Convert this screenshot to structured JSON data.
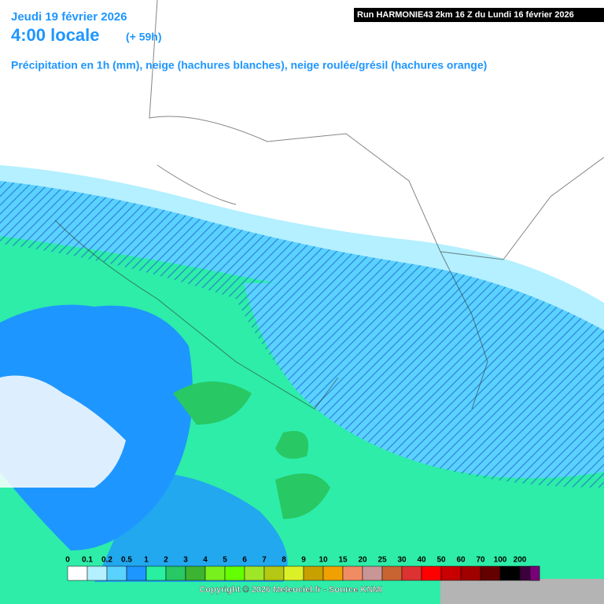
{
  "header": {
    "date": "Jeudi 19 février 2026",
    "time": "4:00 locale",
    "lead": "(+ 59h)",
    "description": "Précipitation en 1h (mm), neige (hachures blanches), neige roulée/grésil (hachures orange)",
    "run": "Run HARMONIE43 2km 16 Z du Lundi 16 février 2026"
  },
  "legend": {
    "entries": [
      {
        "label": "0",
        "color": "#ffffff"
      },
      {
        "label": "0.1",
        "color": "#b4f0ff"
      },
      {
        "label": "0.2",
        "color": "#5ad2ff"
      },
      {
        "label": "0.5",
        "color": "#1e96ff"
      },
      {
        "label": "1",
        "color": "#28f0a0"
      },
      {
        "label": "2",
        "color": "#28c864"
      },
      {
        "label": "3",
        "color": "#3cb432"
      },
      {
        "label": "4",
        "color": "#78f01e"
      },
      {
        "label": "5",
        "color": "#64ff00"
      },
      {
        "label": "6",
        "color": "#a0e628"
      },
      {
        "label": "7",
        "color": "#b4c814"
      },
      {
        "label": "8",
        "color": "#dcf028"
      },
      {
        "label": "9",
        "color": "#c8a000"
      },
      {
        "label": "10",
        "color": "#f0a000"
      },
      {
        "label": "15",
        "color": "#f08c64"
      },
      {
        "label": "20",
        "color": "#c89696"
      },
      {
        "label": "25",
        "color": "#c86432"
      },
      {
        "label": "30",
        "color": "#dc3232"
      },
      {
        "label": "40",
        "color": "#ff0000"
      },
      {
        "label": "50",
        "color": "#c80000"
      },
      {
        "label": "60",
        "color": "#a00000"
      },
      {
        "label": "70",
        "color": "#640000"
      },
      {
        "label": "100",
        "color": "#000000"
      },
      {
        "label": "200",
        "color": "#3c003c"
      }
    ],
    "last_color": "#780078"
  },
  "footer": {
    "copyright": "Copyright © 2026 Meteociel.fr - Source KNMI"
  }
}
